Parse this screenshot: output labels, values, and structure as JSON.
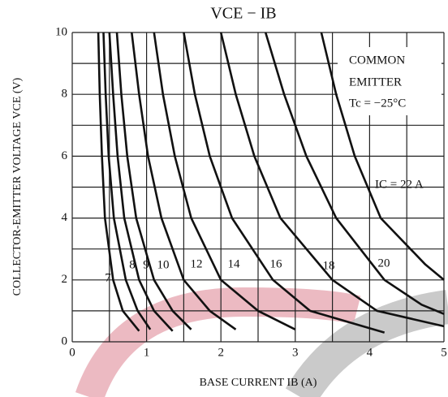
{
  "chart_data": {
    "type": "line",
    "title": "VCE − IB",
    "xlabel": "BASE CURRENT  IB  (A)",
    "ylabel": "COLLECTOR-EMITTER VOLTAGE  VCE  (V)",
    "annotations": [
      "COMMON",
      "EMITTER",
      "Tc = −25°C"
    ],
    "xlim": [
      0,
      5
    ],
    "xticks": [
      0,
      1,
      2,
      3,
      4,
      5
    ],
    "x_minor_ticks": [
      0.5,
      1.5,
      2.5,
      3.5,
      4.5
    ],
    "ylim": [
      0,
      10
    ],
    "yticks": [
      0,
      2,
      4,
      6,
      8,
      10
    ],
    "y_minor_ticks": [
      1,
      3,
      5,
      7,
      9
    ],
    "grid": true,
    "color": "#111111",
    "series": [
      {
        "name": "7",
        "x": [
          0.35,
          0.37,
          0.4,
          0.44,
          0.55,
          0.68,
          0.9
        ],
        "values": [
          10,
          8,
          6,
          4,
          2,
          1,
          0.35
        ]
      },
      {
        "name": "8",
        "x": [
          0.42,
          0.45,
          0.49,
          0.56,
          0.72,
          0.88,
          1.05
        ],
        "values": [
          10,
          8,
          6,
          4,
          2,
          1,
          0.4
        ]
      },
      {
        "name": "9",
        "x": [
          0.5,
          0.55,
          0.61,
          0.7,
          0.9,
          1.1,
          1.35
        ],
        "values": [
          10,
          8,
          6,
          4,
          2,
          1,
          0.35
        ]
      },
      {
        "name": "10",
        "x": [
          0.6,
          0.66,
          0.74,
          0.86,
          1.1,
          1.35,
          1.6
        ],
        "values": [
          10,
          8,
          6,
          4,
          2,
          1,
          0.4
        ]
      },
      {
        "name": "12",
        "x": [
          0.8,
          0.9,
          1.02,
          1.2,
          1.5,
          1.85,
          2.2
        ],
        "values": [
          10,
          8,
          6,
          4,
          2,
          1,
          0.4
        ]
      },
      {
        "name": "14",
        "x": [
          1.1,
          1.22,
          1.38,
          1.6,
          2.0,
          2.5,
          3.0
        ],
        "values": [
          10,
          8,
          6,
          4,
          2,
          1,
          0.4
        ]
      },
      {
        "name": "16",
        "x": [
          1.5,
          1.65,
          1.85,
          2.15,
          2.7,
          3.2,
          4.2
        ],
        "values": [
          10,
          8,
          6,
          4,
          2,
          1,
          0.3
        ]
      },
      {
        "name": "18",
        "x": [
          2.0,
          2.2,
          2.45,
          2.8,
          3.5,
          4.1,
          5.0
        ],
        "values": [
          10,
          8,
          6,
          4,
          2,
          1,
          0.5
        ]
      },
      {
        "name": "20",
        "x": [
          2.6,
          2.85,
          3.15,
          3.55,
          4.2,
          4.7,
          5.0
        ],
        "values": [
          10,
          8,
          6,
          4,
          2,
          1.2,
          0.9
        ]
      },
      {
        "name": "IC = 22 A",
        "x": [
          3.35,
          3.55,
          3.8,
          4.15,
          4.75,
          5.0
        ],
        "values": [
          10,
          8,
          6,
          4,
          2.5,
          2.0
        ]
      }
    ]
  }
}
